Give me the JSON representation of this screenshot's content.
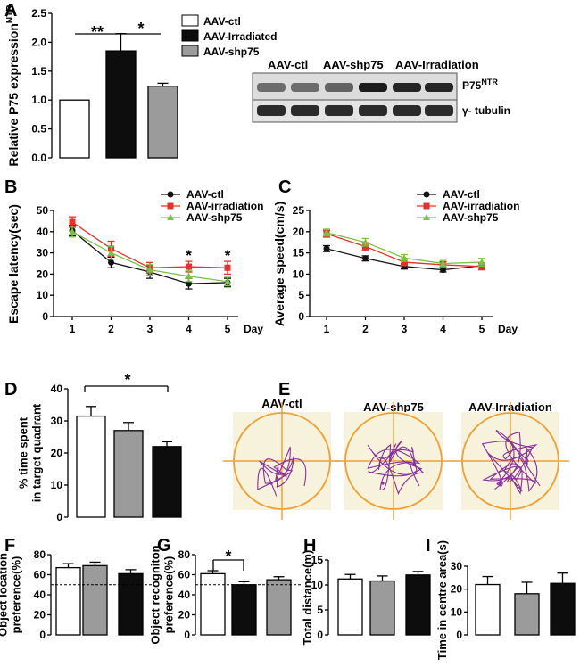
{
  "colors": {
    "white": "#ffffff",
    "grey": "#9b9b9b",
    "black": "#0d0d0d",
    "red": "#e8302a",
    "green": "#7ac143",
    "dot": "#111111",
    "orange": "#f0a032",
    "purple": "#8a2e9a",
    "arena": "#f6f2dc"
  },
  "panel_labels": [
    "A",
    "B",
    "C",
    "D",
    "E",
    "F",
    "G",
    "H",
    "I"
  ],
  "A": {
    "legend": [
      "AAV-ctl",
      "AAV-Irradiated",
      "AAV-shp75"
    ],
    "sig": [
      "**",
      "*"
    ],
    "blot": {
      "lanes": [
        "AAV-ctl",
        "AAV-shp75",
        "AAV-Irradiation"
      ],
      "rows": [
        "P75",
        "γ- tubulin"
      ],
      "row1_sup": "NTR"
    }
  },
  "B_legend": [
    "AAV-ctl",
    "AAV-irradiation",
    "AAV-shp75"
  ],
  "C_legend": [
    "AAV-ctl",
    "AAV-irradiation",
    "AAV-shp75"
  ],
  "day_label": "Day",
  "E": {
    "titles": [
      "AAV-ctl",
      "AAV-shp75",
      "AAV-Irradiation"
    ]
  },
  "chart_data": [
    {
      "id": "A",
      "type": "bar",
      "categories": [
        "AAV-ctl",
        "AAV-Irradiated",
        "AAV-shp75"
      ],
      "values": [
        1.0,
        1.85,
        1.24
      ],
      "errors": [
        0,
        0.3,
        0.05
      ],
      "ylabel": "Relative P75 expression",
      "ylabel_sup": "NTR",
      "ylim": [
        0,
        2.5
      ],
      "yticks": [
        "0.0",
        "0.5",
        "1.0",
        "1.5",
        "2.0",
        "2.5"
      ],
      "significance": [
        "**",
        "*"
      ]
    },
    {
      "id": "B",
      "type": "line",
      "x": [
        1,
        2,
        3,
        4,
        5
      ],
      "xticks": [
        "1",
        "2",
        "3",
        "4",
        "5"
      ],
      "ylabel": "Escape latency(sec)",
      "ylim": [
        0,
        50
      ],
      "yticks": [
        "0",
        "10",
        "20",
        "30",
        "40",
        "50"
      ],
      "series": [
        {
          "name": "AAV-ctl",
          "values": [
            40.5,
            25.5,
            21,
            15.5,
            16
          ],
          "errors": [
            2.5,
            2.5,
            3,
            2.5,
            2
          ]
        },
        {
          "name": "AAV-irradiation",
          "values": [
            44.5,
            32,
            23,
            23.5,
            23
          ],
          "errors": [
            2.5,
            3.5,
            2.5,
            2.5,
            3
          ]
        },
        {
          "name": "AAV-shp75",
          "values": [
            40,
            30,
            22,
            19,
            16.5
          ],
          "errors": [
            2.5,
            3,
            2.5,
            2.5,
            2
          ]
        }
      ],
      "significance": [
        "*",
        "*"
      ]
    },
    {
      "id": "C",
      "type": "line",
      "x": [
        1,
        2,
        3,
        4,
        5
      ],
      "xticks": [
        "1",
        "2",
        "3",
        "4",
        "5"
      ],
      "ylabel": "Average speed(cm/s)",
      "ylim": [
        0,
        25
      ],
      "yticks": [
        "0",
        "5",
        "10",
        "15",
        "20",
        "25"
      ],
      "series": [
        {
          "name": "AAV-ctl",
          "values": [
            16,
            13.7,
            11.8,
            11,
            12
          ],
          "errors": [
            0.7,
            0.6,
            0.6,
            0.5,
            0.6
          ]
        },
        {
          "name": "AAV-irradiation",
          "values": [
            19.5,
            16.5,
            12.8,
            12.2,
            11.8
          ],
          "errors": [
            0.8,
            0.9,
            0.8,
            0.7,
            0.8
          ]
        },
        {
          "name": "AAV-shp75",
          "values": [
            19.8,
            17.5,
            13.8,
            12.5,
            12.8
          ],
          "errors": [
            0.8,
            0.9,
            0.8,
            0.7,
            0.9
          ]
        }
      ]
    },
    {
      "id": "D",
      "type": "bar",
      "values": [
        31.5,
        27,
        22
      ],
      "errors": [
        3,
        2.5,
        1.5
      ],
      "ylabel_lines": [
        "% time spent",
        "in target quadrant"
      ],
      "ylim": [
        0,
        40
      ],
      "yticks": [
        "0",
        "10",
        "20",
        "30",
        "40"
      ],
      "significance": [
        "*"
      ]
    },
    {
      "id": "F",
      "type": "bar",
      "values": [
        67,
        69,
        61
      ],
      "errors": [
        4,
        3.5,
        4
      ],
      "ylabel_lines": [
        "Object location",
        "preference(%)"
      ],
      "ylim": [
        0,
        80
      ],
      "yticks": [
        "0",
        "20",
        "40",
        "60",
        "80"
      ],
      "reference_line": 50
    },
    {
      "id": "G",
      "type": "bar",
      "values": [
        61,
        50,
        55
      ],
      "errors": [
        3,
        3,
        3
      ],
      "ylabel_lines": [
        "Object recogniton",
        "preference(%)"
      ],
      "ylim": [
        0,
        80
      ],
      "yticks": [
        "0",
        "20",
        "40",
        "60",
        "80"
      ],
      "reference_line": 50,
      "significance": [
        "*"
      ]
    },
    {
      "id": "H",
      "type": "bar",
      "values": [
        11.2,
        10.8,
        12
      ],
      "errors": [
        0.9,
        1,
        0.7
      ],
      "ylabel": "Total distance(m)",
      "ylim": [
        0,
        15
      ],
      "yticks": [
        "0",
        "5",
        "10",
        "15"
      ]
    },
    {
      "id": "I",
      "type": "bar",
      "values": [
        22,
        18,
        22.5
      ],
      "errors": [
        3.5,
        5,
        4.5
      ],
      "ylabel": "Time in centre area(s)",
      "ylim": [
        0,
        30
      ],
      "yticks": [
        "0",
        "10",
        "20",
        "30"
      ]
    }
  ]
}
